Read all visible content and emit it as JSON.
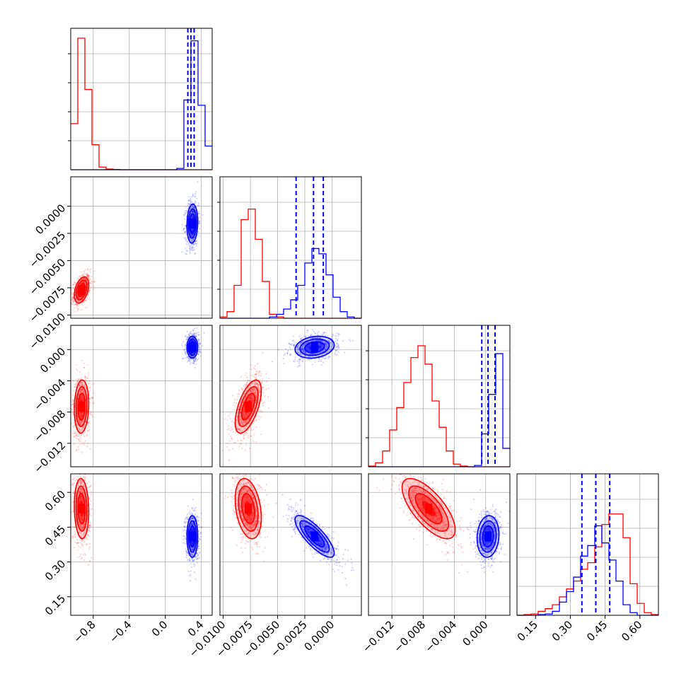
{
  "chart_data": {
    "type": "corner",
    "grid": true,
    "series_colors": [
      "#ff0000",
      "#0000ff"
    ],
    "parameters": [
      {
        "range": [
          -1.05,
          0.52
        ],
        "ticks": [
          -0.8,
          -0.4,
          0.0,
          0.4
        ],
        "tick_labels": [
          "−0.8",
          "−0.4",
          "0.0",
          "0.4"
        ]
      },
      {
        "range": [
          -0.0103,
          0.0027
        ],
        "ticks": [
          -0.01,
          -0.0075,
          -0.005,
          -0.0025,
          0.0
        ],
        "tick_labels": [
          "−0.0100",
          "−0.0075",
          "−0.0050",
          "−0.0025",
          "0.0000"
        ]
      },
      {
        "range": [
          -0.015,
          0.0031
        ],
        "ticks": [
          -0.012,
          -0.008,
          -0.004,
          0.0
        ],
        "tick_labels": [
          "−0.012",
          "−0.008",
          "−0.004",
          "0.000"
        ]
      },
      {
        "range": [
          0.07,
          0.68
        ],
        "ticks": [
          0.15,
          0.3,
          0.45,
          0.6
        ],
        "tick_labels": [
          "0.15",
          "0.30",
          "0.45",
          "0.60"
        ]
      }
    ],
    "series": [
      {
        "color": "#ff0000",
        "histograms": [
          {
            "values": [
              0.35,
              1.0,
              0.61,
              0.19,
              0.02,
              0.005,
              0.002,
              0,
              0,
              0,
              0,
              0,
              0,
              0,
              0,
              0,
              0,
              0,
              0,
              0
            ]
          },
          {
            "values": [
              0.01,
              0.05,
              0.25,
              0.75,
              0.83,
              0.6,
              0.28,
              0.03,
              0.01,
              0,
              0,
              0,
              0,
              0,
              0,
              0,
              0,
              0,
              0,
              0
            ]
          },
          {
            "values": [
              0.005,
              0.03,
              0.12,
              0.28,
              0.45,
              0.64,
              0.83,
              0.92,
              0.78,
              0.5,
              0.3,
              0.12,
              0.02,
              0.005,
              0,
              0,
              0,
              0,
              0,
              0
            ]
          },
          {
            "values": [
              0,
              0.005,
              0.01,
              0.03,
              0.05,
              0.08,
              0.14,
              0.2,
              0.26,
              0.35,
              0.4,
              0.52,
              0.69,
              0.77,
              0.77,
              0.59,
              0.24,
              0.09,
              0.02,
              0.005
            ]
          }
        ],
        "centers": [
          -0.93,
          -0.0077,
          -0.0073,
          0.53
        ],
        "sd": [
          0.04,
          0.0006,
          0.0017,
          0.065
        ],
        "corr": [
          [
            1,
            0.4,
            0.1,
            -0.1
          ],
          [
            0.4,
            1,
            0.6,
            -0.3
          ],
          [
            0.1,
            0.6,
            1,
            -0.7
          ],
          [
            -0.1,
            -0.3,
            -0.7,
            1
          ]
        ]
      },
      {
        "color": "#0000ff",
        "histograms": [
          {
            "values": [
              0,
              0,
              0,
              0,
              0,
              0,
              0,
              0,
              0,
              0,
              0,
              0,
              0,
              0,
              0,
              0.01,
              0.53,
              0.98,
              0.49,
              0.18
            ]
          },
          {
            "values": [
              0,
              0,
              0,
              0,
              0,
              0,
              0,
              0.01,
              0.03,
              0.07,
              0.14,
              0.25,
              0.42,
              0.53,
              0.49,
              0.33,
              0.16,
              0.05,
              0.01,
              0
            ]
          },
          {
            "values": [
              0,
              0,
              0,
              0,
              0,
              0,
              0,
              0,
              0,
              0,
              0,
              0,
              0,
              0,
              0,
              0.01,
              0.25,
              0.55,
              0.86,
              0.14
            ]
          },
          {
            "values": [
              0,
              0,
              0,
              0.005,
              0.01,
              0.03,
              0.1,
              0.18,
              0.29,
              0.45,
              0.53,
              0.68,
              0.55,
              0.42,
              0.26,
              0.08,
              0.02,
              0,
              0,
              0
            ]
          }
        ],
        "centers": [
          0.3,
          -0.0016,
          0.0003,
          0.41
        ],
        "sd": [
          0.03,
          0.0009,
          0.0007,
          0.045
        ],
        "corr": [
          [
            1,
            0.1,
            0.0,
            0.0
          ],
          [
            0.1,
            1,
            0.2,
            -0.8
          ],
          [
            0.0,
            0.2,
            1,
            0.1
          ],
          [
            0.0,
            -0.8,
            0.1,
            1
          ]
        ],
        "quantile_lines": [
          [
            0.25,
            0.285,
            0.32
          ],
          [
            -0.0033,
            -0.0017,
            -0.0008
          ],
          [
            -0.0005,
            0.0003,
            0.0012
          ],
          [
            0.35,
            0.41,
            0.47
          ]
        ]
      }
    ]
  }
}
